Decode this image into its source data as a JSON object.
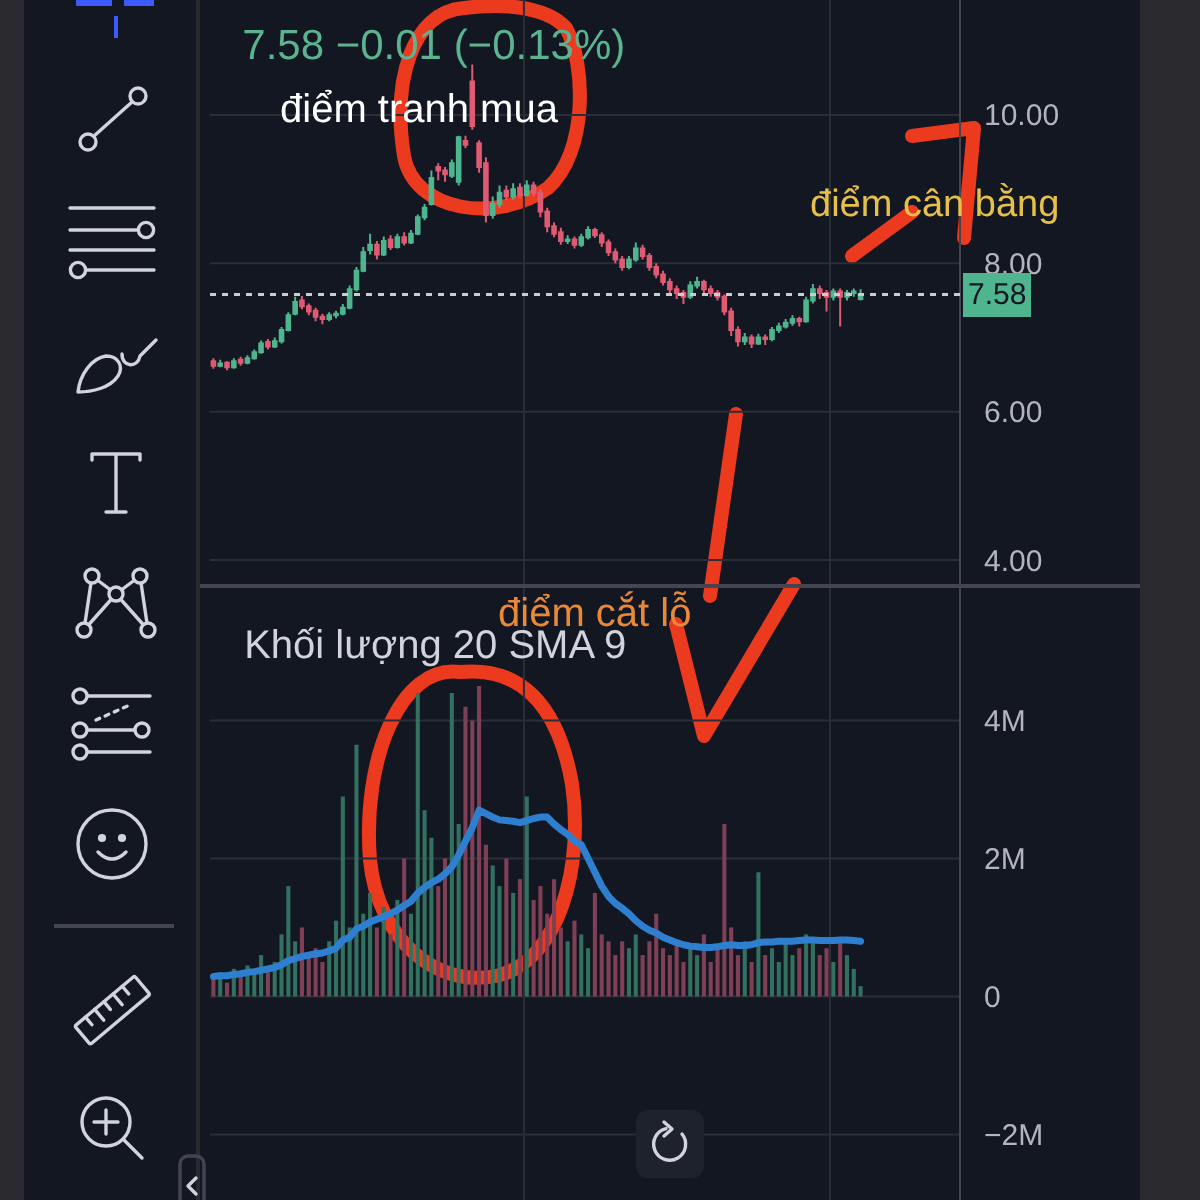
{
  "chart_data": [
    {
      "type": "candlestick",
      "title": "7.58 −0.01 (−0.13%)",
      "categories": [
        null,
        null,
        null,
        null,
        null,
        null,
        null,
        null,
        null,
        null,
        null,
        null,
        null,
        null,
        null,
        null,
        null,
        null,
        null,
        null,
        null,
        null,
        null,
        null,
        null,
        null,
        null,
        null,
        null,
        null,
        null,
        null,
        null,
        null,
        null,
        null,
        null,
        null,
        null,
        null,
        null,
        null,
        null,
        null,
        null,
        null,
        null,
        null,
        null,
        null,
        null,
        null,
        null,
        null,
        null,
        null,
        null,
        null,
        null,
        null,
        null,
        null,
        null,
        null,
        null,
        null,
        null,
        null,
        null,
        null,
        null,
        null,
        null,
        null,
        null,
        null,
        null,
        null,
        null,
        null,
        null,
        null,
        null,
        null,
        null,
        null,
        null,
        null,
        null,
        null,
        null,
        null,
        null,
        null,
        null,
        null
      ],
      "ohlc": [
        [
          6.68,
          6.72,
          6.58,
          6.62
        ],
        [
          6.62,
          6.7,
          6.6,
          6.65
        ],
        [
          6.66,
          6.68,
          6.56,
          6.6
        ],
        [
          6.6,
          6.72,
          6.58,
          6.68
        ],
        [
          6.7,
          6.74,
          6.62,
          6.66
        ],
        [
          6.66,
          6.76,
          6.64,
          6.72
        ],
        [
          6.72,
          6.84,
          6.7,
          6.8
        ],
        [
          6.8,
          6.96,
          6.78,
          6.92
        ],
        [
          6.94,
          6.98,
          6.84,
          6.88
        ],
        [
          6.88,
          7.0,
          6.86,
          6.95
        ],
        [
          6.95,
          7.14,
          6.92,
          7.1
        ],
        [
          7.1,
          7.34,
          7.08,
          7.3
        ],
        [
          7.32,
          7.55,
          7.3,
          7.48
        ],
        [
          7.5,
          7.56,
          7.38,
          7.42
        ],
        [
          7.42,
          7.46,
          7.3,
          7.35
        ],
        [
          7.36,
          7.4,
          7.22,
          7.28
        ],
        [
          7.28,
          7.32,
          7.18,
          7.25
        ],
        [
          7.25,
          7.34,
          7.22,
          7.3
        ],
        [
          7.3,
          7.36,
          7.26,
          7.32
        ],
        [
          7.32,
          7.45,
          7.3,
          7.4
        ],
        [
          7.4,
          7.7,
          7.38,
          7.65
        ],
        [
          7.65,
          7.95,
          7.62,
          7.9
        ],
        [
          7.9,
          8.22,
          7.88,
          8.15
        ],
        [
          8.18,
          8.4,
          8.12,
          8.25
        ],
        [
          8.25,
          8.3,
          8.05,
          8.12
        ],
        [
          8.12,
          8.36,
          8.1,
          8.3
        ],
        [
          8.32,
          8.38,
          8.18,
          8.22
        ],
        [
          8.22,
          8.4,
          8.2,
          8.35
        ],
        [
          8.35,
          8.42,
          8.24,
          8.28
        ],
        [
          8.28,
          8.45,
          8.26,
          8.4
        ],
        [
          8.4,
          8.66,
          8.38,
          8.62
        ],
        [
          8.62,
          8.8,
          8.58,
          8.75
        ],
        [
          8.8,
          9.25,
          8.78,
          9.15
        ],
        [
          9.3,
          9.35,
          9.12,
          9.25
        ],
        [
          9.25,
          9.3,
          9.1,
          9.2
        ],
        [
          9.18,
          9.4,
          9.15,
          9.35
        ],
        [
          9.1,
          9.72,
          9.05,
          9.7
        ],
        [
          9.65,
          9.72,
          9.55,
          9.6
        ],
        [
          10.45,
          10.68,
          9.8,
          9.85
        ],
        [
          9.62,
          9.66,
          9.22,
          9.3
        ],
        [
          9.35,
          9.43,
          8.55,
          8.65
        ],
        [
          8.65,
          8.9,
          8.6,
          8.8
        ],
        [
          8.8,
          9.05,
          8.75,
          8.95
        ],
        [
          8.98,
          9.05,
          8.85,
          8.9
        ],
        [
          8.9,
          9.08,
          8.86,
          9.0
        ],
        [
          9.02,
          9.08,
          8.88,
          8.92
        ],
        [
          8.92,
          9.12,
          8.9,
          9.05
        ],
        [
          9.05,
          9.1,
          8.9,
          8.95
        ],
        [
          8.95,
          9.0,
          8.62,
          8.7
        ],
        [
          8.7,
          8.75,
          8.42,
          8.5
        ],
        [
          8.5,
          8.55,
          8.35,
          8.4
        ],
        [
          8.42,
          8.48,
          8.25,
          8.3
        ],
        [
          8.3,
          8.38,
          8.26,
          8.32
        ],
        [
          8.32,
          8.36,
          8.2,
          8.25
        ],
        [
          8.25,
          8.4,
          8.22,
          8.35
        ],
        [
          8.35,
          8.5,
          8.32,
          8.45
        ],
        [
          8.45,
          8.48,
          8.34,
          8.38
        ],
        [
          8.38,
          8.42,
          8.22,
          8.28
        ],
        [
          8.28,
          8.32,
          8.1,
          8.15
        ],
        [
          8.15,
          8.2,
          8.0,
          8.05
        ],
        [
          8.05,
          8.1,
          7.9,
          7.95
        ],
        [
          7.95,
          8.1,
          7.92,
          8.05
        ],
        [
          8.05,
          8.28,
          8.02,
          8.2
        ],
        [
          8.2,
          8.25,
          8.05,
          8.1
        ],
        [
          8.1,
          8.14,
          7.9,
          7.95
        ],
        [
          7.95,
          8.0,
          7.8,
          7.85
        ],
        [
          7.85,
          7.9,
          7.7,
          7.75
        ],
        [
          7.75,
          7.8,
          7.6,
          7.65
        ],
        [
          7.65,
          7.7,
          7.52,
          7.6
        ],
        [
          7.6,
          7.64,
          7.45,
          7.55
        ],
        [
          7.55,
          7.76,
          7.52,
          7.7
        ],
        [
          7.7,
          7.82,
          7.66,
          7.75
        ],
        [
          7.75,
          7.78,
          7.6,
          7.65
        ],
        [
          7.65,
          7.7,
          7.55,
          7.6
        ],
        [
          7.6,
          7.64,
          7.5,
          7.55
        ],
        [
          7.55,
          7.58,
          7.3,
          7.35
        ],
        [
          7.35,
          7.4,
          7.02,
          7.1
        ],
        [
          7.1,
          7.15,
          6.88,
          6.95
        ],
        [
          6.95,
          7.06,
          6.9,
          7.0
        ],
        [
          7.0,
          7.04,
          6.86,
          6.92
        ],
        [
          6.92,
          7.05,
          6.9,
          7.0
        ],
        [
          7.0,
          7.04,
          6.9,
          6.98
        ],
        [
          6.98,
          7.14,
          6.95,
          7.1
        ],
        [
          7.1,
          7.2,
          7.06,
          7.15
        ],
        [
          7.15,
          7.25,
          7.12,
          7.2
        ],
        [
          7.2,
          7.3,
          7.16,
          7.25
        ],
        [
          7.25,
          7.28,
          7.15,
          7.22
        ],
        [
          7.22,
          7.55,
          7.2,
          7.5
        ],
        [
          7.5,
          7.72,
          7.46,
          7.65
        ],
        [
          7.65,
          7.7,
          7.52,
          7.6
        ],
        [
          7.6,
          7.64,
          7.35,
          7.55
        ],
        [
          7.55,
          7.66,
          7.5,
          7.62
        ],
        [
          7.62,
          7.66,
          7.15,
          7.55
        ],
        [
          7.55,
          7.64,
          7.5,
          7.6
        ],
        [
          7.6,
          7.66,
          7.55,
          7.62
        ],
        [
          7.52,
          7.65,
          7.5,
          7.58
        ]
      ],
      "colors": [
        "#e05a73",
        "#4fb58e",
        "#e05a73",
        "#4fb58e",
        "#e05a73",
        "#4fb58e",
        "#4fb58e",
        "#4fb58e",
        "#e05a73",
        "#4fb58e",
        "#4fb58e",
        "#4fb58e",
        "#4fb58e",
        "#e05a73",
        "#e05a73",
        "#e05a73",
        "#e05a73",
        "#4fb58e",
        "#4fb58e",
        "#4fb58e",
        "#4fb58e",
        "#4fb58e",
        "#4fb58e",
        "#4fb58e",
        "#e05a73",
        "#4fb58e",
        "#e05a73",
        "#4fb58e",
        "#e05a73",
        "#4fb58e",
        "#4fb58e",
        "#4fb58e",
        "#4fb58e",
        "#e05a73",
        "#e05a73",
        "#4fb58e",
        "#4fb58e",
        "#e05a73",
        "#e05a73",
        "#e05a73",
        "#e05a73",
        "#4fb58e",
        "#4fb58e",
        "#e05a73",
        "#4fb58e",
        "#e05a73",
        "#4fb58e",
        "#e05a73",
        "#e05a73",
        "#e05a73",
        "#e05a73",
        "#e05a73",
        "#4fb58e",
        "#e05a73",
        "#4fb58e",
        "#4fb58e",
        "#e05a73",
        "#e05a73",
        "#e05a73",
        "#e05a73",
        "#e05a73",
        "#4fb58e",
        "#4fb58e",
        "#e05a73",
        "#e05a73",
        "#e05a73",
        "#e05a73",
        "#e05a73",
        "#e05a73",
        "#e05a73",
        "#4fb58e",
        "#4fb58e",
        "#e05a73",
        "#e05a73",
        "#e05a73",
        "#e05a73",
        "#e05a73",
        "#e05a73",
        "#4fb58e",
        "#e05a73",
        "#4fb58e",
        "#e05a73",
        "#4fb58e",
        "#4fb58e",
        "#4fb58e",
        "#4fb58e",
        "#e05a73",
        "#4fb58e",
        "#4fb58e",
        "#e05a73",
        "#e05a73",
        "#4fb58e",
        "#e05a73",
        "#4fb58e",
        "#4fb58e",
        "#4fb58e"
      ],
      "ylim": [
        3.65,
        11.55
      ],
      "yticks": [
        {
          "value": 4,
          "label": "4.00"
        },
        {
          "value": 6,
          "label": "6.00"
        },
        {
          "value": 8,
          "label": "8.00"
        },
        {
          "value": 10,
          "label": "10.00"
        }
      ],
      "grid": true,
      "tick_labels": "y",
      "ref_lines": [
        {
          "axis": "y",
          "value": 7.58,
          "label": "7.58",
          "color": "#c9ccd4",
          "line_style": "dotted"
        }
      ],
      "annotations": [
        "điểm tranh mua",
        "điểm cân bằng"
      ]
    },
    {
      "type": "bar",
      "title": "Khối lượng 20 SMA 9",
      "categories": [
        null,
        null,
        null,
        null,
        null,
        null,
        null,
        null,
        null,
        null,
        null,
        null,
        null,
        null,
        null,
        null,
        null,
        null,
        null,
        null,
        null,
        null,
        null,
        null,
        null,
        null,
        null,
        null,
        null,
        null,
        null,
        null,
        null,
        null,
        null,
        null,
        null,
        null,
        null,
        null,
        null,
        null,
        null,
        null,
        null,
        null,
        null,
        null,
        null,
        null,
        null,
        null,
        null,
        null,
        null,
        null,
        null,
        null,
        null,
        null,
        null,
        null,
        null,
        null,
        null,
        null,
        null,
        null,
        null,
        null,
        null,
        null,
        null,
        null,
        null,
        null,
        null,
        null,
        null,
        null,
        null,
        null,
        null,
        null,
        null,
        null,
        null,
        null,
        null,
        null,
        null,
        null,
        null,
        null,
        null,
        null
      ],
      "series": [
        {
          "type": "bar",
          "values": [
            0.25,
            0.35,
            0.2,
            0.4,
            0.3,
            0.45,
            0.35,
            0.6,
            0.4,
            0.5,
            0.9,
            1.6,
            0.8,
            1.0,
            0.6,
            0.7,
            0.5,
            0.8,
            1.1,
            2.9,
            1.0,
            3.65,
            1.2,
            1.5,
            1.0,
            1.3,
            0.9,
            1.4,
            2.0,
            1.2,
            4.4,
            2.7,
            2.3,
            1.6,
            2.0,
            4.4,
            2.5,
            4.2,
            4.0,
            4.5,
            2.2,
            1.9,
            1.6,
            2.0,
            1.5,
            1.7,
            2.9,
            1.4,
            1.6,
            1.2,
            1.7,
            1.0,
            0.8,
            1.1,
            0.9,
            0.7,
            1.5,
            0.9,
            0.8,
            0.6,
            0.8,
            0.7,
            0.9,
            0.6,
            0.8,
            1.2,
            0.7,
            0.6,
            0.8,
            0.5,
            0.7,
            0.6,
            0.9,
            0.5,
            0.7,
            2.5,
            1.0,
            0.6,
            0.8,
            0.5,
            1.8,
            0.6,
            0.7,
            0.5,
            0.8,
            0.6,
            0.7,
            0.9,
            0.8,
            0.6,
            0.7,
            0.5,
            0.8,
            0.6,
            0.4,
            0.15
          ],
          "colors": [
            "#7f3f55",
            "#32705f",
            "#7f3f55",
            "#32705f",
            "#7f3f55",
            "#32705f",
            "#32705f",
            "#32705f",
            "#7f3f55",
            "#32705f",
            "#32705f",
            "#32705f",
            "#32705f",
            "#7f3f55",
            "#7f3f55",
            "#7f3f55",
            "#7f3f55",
            "#32705f",
            "#32705f",
            "#32705f",
            "#32705f",
            "#32705f",
            "#32705f",
            "#32705f",
            "#7f3f55",
            "#32705f",
            "#7f3f55",
            "#32705f",
            "#7f3f55",
            "#32705f",
            "#32705f",
            "#32705f",
            "#32705f",
            "#7f3f55",
            "#7f3f55",
            "#32705f",
            "#32705f",
            "#7f3f55",
            "#7f3f55",
            "#7f3f55",
            "#7f3f55",
            "#32705f",
            "#32705f",
            "#7f3f55",
            "#32705f",
            "#7f3f55",
            "#32705f",
            "#7f3f55",
            "#7f3f55",
            "#7f3f55",
            "#7f3f55",
            "#7f3f55",
            "#32705f",
            "#7f3f55",
            "#32705f",
            "#32705f",
            "#7f3f55",
            "#7f3f55",
            "#7f3f55",
            "#7f3f55",
            "#7f3f55",
            "#32705f",
            "#32705f",
            "#7f3f55",
            "#7f3f55",
            "#7f3f55",
            "#7f3f55",
            "#7f3f55",
            "#7f3f55",
            "#7f3f55",
            "#32705f",
            "#32705f",
            "#7f3f55",
            "#7f3f55",
            "#7f3f55",
            "#7f3f55",
            "#7f3f55",
            "#7f3f55",
            "#32705f",
            "#7f3f55",
            "#32705f",
            "#7f3f55",
            "#32705f",
            "#32705f",
            "#32705f",
            "#32705f",
            "#7f3f55",
            "#32705f",
            "#32705f",
            "#7f3f55",
            "#7f3f55",
            "#32705f",
            "#7f3f55",
            "#32705f",
            "#32705f",
            "#32705f"
          ]
        },
        {
          "type": "line",
          "color": "#2f7fd1",
          "values": [
            0.29,
            0.3,
            0.3,
            0.32,
            0.33,
            0.35,
            0.36,
            0.38,
            0.4,
            0.42,
            0.46,
            0.52,
            0.55,
            0.58,
            0.6,
            0.62,
            0.63,
            0.66,
            0.7,
            0.82,
            0.86,
            0.98,
            1.02,
            1.08,
            1.12,
            1.16,
            1.2,
            1.25,
            1.32,
            1.38,
            1.5,
            1.58,
            1.65,
            1.7,
            1.78,
            1.88,
            2.05,
            2.25,
            2.45,
            2.7,
            2.65,
            2.6,
            2.56,
            2.55,
            2.54,
            2.52,
            2.55,
            2.58,
            2.6,
            2.6,
            2.5,
            2.42,
            2.35,
            2.25,
            2.2,
            2.0,
            1.8,
            1.6,
            1.45,
            1.35,
            1.28,
            1.2,
            1.1,
            1.02,
            0.96,
            0.92,
            0.86,
            0.82,
            0.78,
            0.75,
            0.73,
            0.72,
            0.71,
            0.71,
            0.72,
            0.74,
            0.75,
            0.74,
            0.74,
            0.75,
            0.78,
            0.79,
            0.79,
            0.8,
            0.8,
            0.8,
            0.81,
            0.82,
            0.82,
            0.81,
            0.81,
            0.81,
            0.82,
            0.82,
            0.81,
            0.8
          ]
        }
      ],
      "ylim": [
        -2.95,
        5.95
      ],
      "yticks": [
        {
          "value": -2,
          "label": "−2M"
        },
        0,
        {
          "value": 2,
          "label": "2M"
        },
        {
          "value": 4,
          "label": "4M"
        }
      ],
      "grid": true,
      "tick_labels": "y",
      "annotations": [
        "điểm cắt lỗ"
      ]
    }
  ]
}
